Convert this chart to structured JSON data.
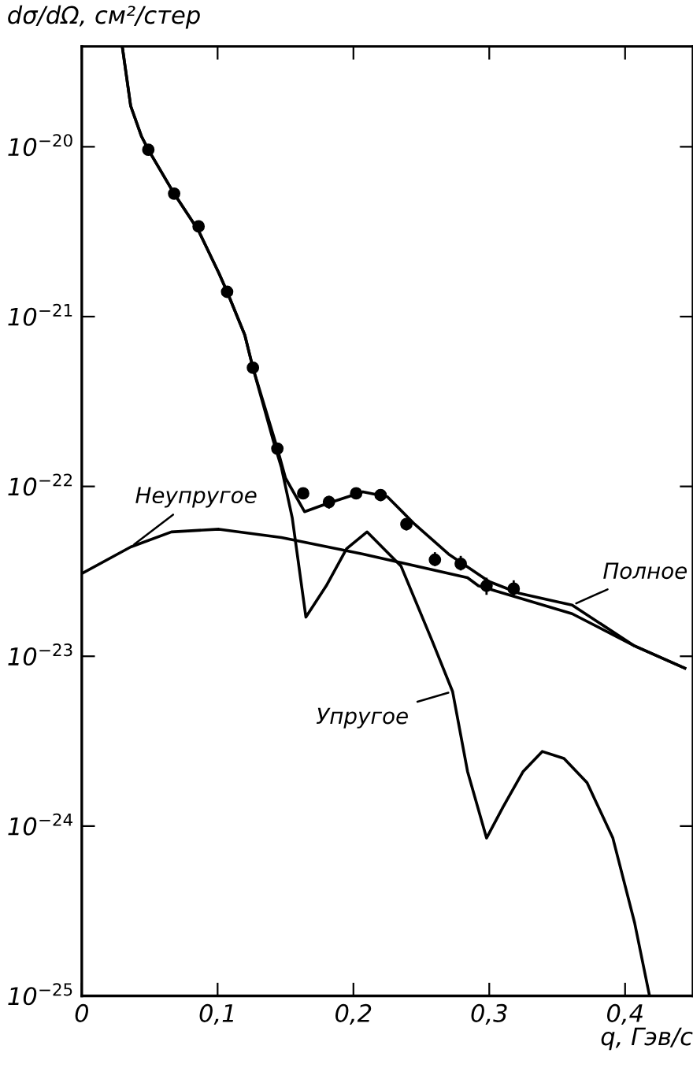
{
  "chart_data": {
    "type": "line",
    "xlabel": "q, Гэв/с",
    "ylabel": "dσ/dΩ, см²/стер",
    "log": "y",
    "grid": false,
    "legend": false,
    "line_style": "solid",
    "xlim": [
      0,
      0.45
    ],
    "xticks": [
      {
        "value": 0,
        "label": "0"
      },
      {
        "value": 0.1,
        "label": "0,1"
      },
      {
        "value": 0.2,
        "label": "0,2"
      },
      {
        "value": 0.3,
        "label": "0,3"
      },
      {
        "value": 0.4,
        "label": "0,4"
      }
    ],
    "ylim": [
      1e-25,
      3.9e-20
    ],
    "yticks": [
      {
        "value": 1e-25,
        "label": "10$^{−25}$"
      },
      {
        "value": 1e-24,
        "label": "10$^{−24}$"
      },
      {
        "value": 1e-23,
        "label": "10$^{−23}$"
      },
      {
        "value": 1e-22,
        "label": "10$^{−22}$"
      },
      {
        "value": 1e-21,
        "label": "10$^{−21}$"
      },
      {
        "value": 1e-20,
        "label": "10$^{−20}$"
      }
    ],
    "series": [
      {
        "name": "Полное",
        "color": "#000000",
        "x": [
          0.03,
          0.036,
          0.044,
          0.049,
          0.068,
          0.086,
          0.101,
          0.107,
          0.12,
          0.126,
          0.144,
          0.15,
          0.164,
          0.18,
          0.207,
          0.225,
          0.245,
          0.27,
          0.3,
          0.322,
          0.361,
          0.407,
          0.444
        ],
        "values": [
          3.8e-20,
          1.74e-20,
          1.15e-20,
          9.6e-21,
          5.3e-21,
          3.2e-21,
          1.8e-21,
          1.4e-21,
          7.8e-22,
          5e-22,
          1.67e-22,
          1.12e-22,
          7.1e-23,
          7.9e-23,
          9.3e-23,
          8.7e-23,
          6e-23,
          4e-23,
          2.75e-23,
          2.35e-23,
          2e-23,
          1.15e-23,
          8.5e-24
        ]
      },
      {
        "name": "Упругое",
        "color": "#000000",
        "x": [
          0.03,
          0.036,
          0.044,
          0.049,
          0.068,
          0.086,
          0.101,
          0.107,
          0.12,
          0.126,
          0.141,
          0.147,
          0.155,
          0.165,
          0.18,
          0.195,
          0.21,
          0.235,
          0.258,
          0.273,
          0.284,
          0.298,
          0.31,
          0.325,
          0.339,
          0.355,
          0.372,
          0.391,
          0.407,
          0.418
        ],
        "values": [
          3.8e-20,
          1.74e-20,
          1.15e-20,
          9.6e-21,
          5.3e-21,
          3.2e-21,
          1.8e-21,
          1.4e-21,
          7.8e-22,
          5e-22,
          1.86e-22,
          1.29e-22,
          6.5e-23,
          1.7e-23,
          2.6e-23,
          4.3e-23,
          5.4e-23,
          3.4e-23,
          1.23e-23,
          6.2e-24,
          2.1e-24,
          8.5e-25,
          1.29e-24,
          2.1e-24,
          2.75e-24,
          2.5e-24,
          1.8e-24,
          8.5e-25,
          2.7e-25,
          1e-25
        ]
      },
      {
        "name": "Неупругое",
        "color": "#000000",
        "x": [
          0.001,
          0.036,
          0.066,
          0.101,
          0.147,
          0.207,
          0.284,
          0.292,
          0.361,
          0.407,
          0.444
        ],
        "values": [
          3.1e-23,
          4.4e-23,
          5.4e-23,
          5.6e-23,
          5e-23,
          4e-23,
          2.9e-23,
          2.6e-23,
          1.78e-23,
          1.15e-23,
          8.5e-24
        ]
      },
      {
        "type": "scatter",
        "color": "#000000",
        "marker": "circle",
        "x": [
          0.049,
          0.068,
          0.086,
          0.107,
          0.126,
          0.144,
          0.163,
          0.182,
          0.202,
          0.22,
          0.239,
          0.26,
          0.279,
          0.298,
          0.318
        ],
        "values": [
          9.6e-21,
          5.3e-21,
          3.4e-21,
          1.4e-21,
          5e-22,
          1.67e-22,
          9.1e-23,
          8.1e-23,
          9.1e-23,
          8.9e-23,
          6e-23,
          3.7e-23,
          3.5e-23,
          2.6e-23,
          2.5e-23
        ],
        "errors": [
          null,
          null,
          null,
          null,
          null,
          null,
          [
            8.4e-23,
            9.8e-23
          ],
          [
            7.4e-23,
            8.8e-23
          ],
          [
            8.4e-23,
            9.8e-23
          ],
          [
            8.2e-23,
            9.6e-23
          ],
          [
            5.5e-23,
            6.5e-23
          ],
          [
            3.4e-23,
            4.1e-23
          ],
          [
            3.2e-23,
            3.9e-23
          ],
          [
            2.3e-23,
            2.9e-23
          ],
          [
            2.25e-23,
            2.8e-23
          ]
        ]
      }
    ]
  }
}
